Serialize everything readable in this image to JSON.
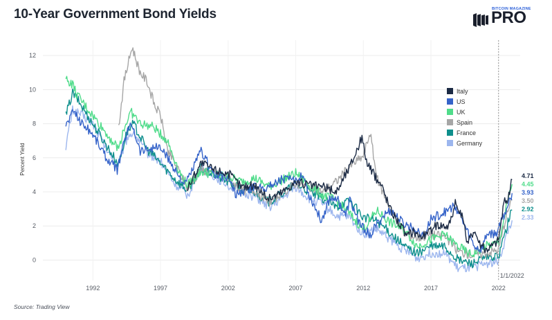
{
  "header": {
    "title": "10-Year Government Bond Yields",
    "logo_top": "BITCOIN MAGAZINE",
    "logo_main": "PRO"
  },
  "footer": {
    "source": "Source: Trading View"
  },
  "chart_data": {
    "type": "line",
    "title": "10-Year Government Bond Yields",
    "xlabel": "",
    "ylabel": "Percent Yield",
    "xlim": [
      1988.3,
      2023.6
    ],
    "ylim": [
      -1.2,
      12.9
    ],
    "yticks": [
      0,
      2,
      4,
      6,
      8,
      10,
      12
    ],
    "xticks": [
      1992,
      1997,
      2002,
      2007,
      2012,
      2017,
      2022
    ],
    "grid": true,
    "legend_position": "right",
    "reference_line": {
      "x": 2022.0,
      "label": "1/1/2022",
      "style": "dotted"
    },
    "series": [
      {
        "name": "Italy",
        "color": "#1b2a44",
        "end_label": "4.71",
        "points": [
          [
            1999,
            4.2
          ],
          [
            1999.5,
            5.0
          ],
          [
            2000,
            5.7
          ],
          [
            2001,
            5.3
          ],
          [
            2002,
            5.1
          ],
          [
            2003,
            4.3
          ],
          [
            2004,
            4.4
          ],
          [
            2005,
            3.6
          ],
          [
            2006,
            4.0
          ],
          [
            2007,
            4.6
          ],
          [
            2008,
            4.4
          ],
          [
            2009,
            4.3
          ],
          [
            2010,
            4.0
          ],
          [
            2011,
            5.5
          ],
          [
            2011.9,
            7.2
          ],
          [
            2012.3,
            5.6
          ],
          [
            2012.8,
            5.0
          ],
          [
            2013.4,
            4.3
          ],
          [
            2014,
            3.0
          ],
          [
            2014.8,
            2.0
          ],
          [
            2015.2,
            1.4
          ],
          [
            2015.7,
            1.7
          ],
          [
            2016.3,
            1.4
          ],
          [
            2016.8,
            1.6
          ],
          [
            2017.5,
            2.1
          ],
          [
            2018.3,
            2.0
          ],
          [
            2018.8,
            3.3
          ],
          [
            2019.3,
            2.5
          ],
          [
            2019.7,
            1.0
          ],
          [
            2020.2,
            1.8
          ],
          [
            2020.6,
            1.0
          ],
          [
            2021,
            0.6
          ],
          [
            2021.6,
            0.9
          ],
          [
            2022,
            1.2
          ],
          [
            2022.4,
            3.4
          ],
          [
            2022.7,
            3.6
          ],
          [
            2023.0,
            4.71
          ]
        ]
      },
      {
        "name": "US",
        "color": "#3563c9",
        "end_label": "3.93",
        "points": [
          [
            1990,
            7.9
          ],
          [
            1990.6,
            8.8
          ],
          [
            1991,
            8.2
          ],
          [
            1992,
            7.4
          ],
          [
            1993,
            6.0
          ],
          [
            1993.8,
            5.3
          ],
          [
            1994.5,
            7.5
          ],
          [
            1994.9,
            8.0
          ],
          [
            1995.5,
            6.4
          ],
          [
            1996.5,
            6.6
          ],
          [
            1997,
            6.6
          ],
          [
            1998,
            5.4
          ],
          [
            1998.8,
            4.4
          ],
          [
            1999,
            4.7
          ],
          [
            2000,
            6.4
          ],
          [
            2001,
            5.0
          ],
          [
            2002,
            4.8
          ],
          [
            2002.6,
            3.8
          ],
          [
            2003,
            4.0
          ],
          [
            2004,
            4.3
          ],
          [
            2005,
            4.3
          ],
          [
            2006,
            4.8
          ],
          [
            2007,
            4.6
          ],
          [
            2007.5,
            5.1
          ],
          [
            2008,
            3.8
          ],
          [
            2008.9,
            2.3
          ],
          [
            2009.5,
            3.6
          ],
          [
            2010,
            3.7
          ],
          [
            2010.7,
            2.6
          ],
          [
            2011,
            3.5
          ],
          [
            2011.8,
            2.0
          ],
          [
            2012.5,
            1.5
          ],
          [
            2013.5,
            2.6
          ],
          [
            2014,
            2.9
          ],
          [
            2015,
            2.1
          ],
          [
            2016,
            1.8
          ],
          [
            2016.5,
            1.4
          ],
          [
            2017,
            2.4
          ],
          [
            2018,
            2.8
          ],
          [
            2018.8,
            3.2
          ],
          [
            2019.5,
            2.0
          ],
          [
            2020.2,
            0.8
          ],
          [
            2020.7,
            0.6
          ],
          [
            2021.2,
            1.6
          ],
          [
            2021.8,
            1.5
          ],
          [
            2022.2,
            2.3
          ],
          [
            2022.6,
            3.0
          ],
          [
            2023.0,
            3.93
          ]
        ]
      },
      {
        "name": "UK",
        "color": "#4fdc8a",
        "end_label": "4.45",
        "points": [
          [
            1990,
            10.6
          ],
          [
            1990.5,
            10.3
          ],
          [
            1990.8,
            9.7
          ],
          [
            1993.9,
            6.5
          ],
          [
            1994.2,
            7.5
          ],
          [
            1994.8,
            8.7
          ],
          [
            1995.5,
            8.0
          ],
          [
            1996.5,
            7.8
          ],
          [
            1997.5,
            7.0
          ],
          [
            1998.5,
            5.0
          ],
          [
            1999,
            4.4
          ],
          [
            2000,
            5.2
          ],
          [
            2001,
            5.0
          ],
          [
            2002,
            4.9
          ],
          [
            2003,
            4.6
          ],
          [
            2004,
            4.8
          ],
          [
            2005,
            4.3
          ],
          [
            2006,
            4.7
          ],
          [
            2007,
            5.1
          ],
          [
            2008,
            4.4
          ],
          [
            2009,
            3.8
          ],
          [
            2010,
            3.5
          ],
          [
            2011,
            2.7
          ],
          [
            2012,
            1.8
          ],
          [
            2013,
            2.9
          ],
          [
            2014,
            2.2
          ],
          [
            2015,
            1.8
          ],
          [
            2016,
            0.8
          ],
          [
            2017,
            1.2
          ],
          [
            2018,
            1.5
          ],
          [
            2019,
            0.8
          ],
          [
            2020,
            0.3
          ],
          [
            2021,
            0.8
          ],
          [
            2022,
            1.0
          ],
          [
            2022.7,
            3.5
          ],
          [
            2023.0,
            4.45
          ]
        ]
      },
      {
        "name": "Spain",
        "color": "#a6a6a6",
        "end_label": "3.50",
        "points": [
          [
            1993.9,
            7.8
          ],
          [
            1994.3,
            10.5
          ],
          [
            1994.9,
            12.5
          ],
          [
            1995.5,
            11.0
          ],
          [
            1996,
            10.5
          ],
          [
            1996.6,
            9.0
          ],
          [
            1997,
            8.5
          ],
          [
            1997.5,
            6.5
          ],
          [
            1998.5,
            5.0
          ],
          [
            1999,
            4.2
          ],
          [
            2000,
            5.3
          ],
          [
            2001,
            5.1
          ],
          [
            2002,
            4.8
          ],
          [
            2003,
            4.1
          ],
          [
            2004,
            4.1
          ],
          [
            2005,
            3.4
          ],
          [
            2006,
            3.9
          ],
          [
            2007,
            4.5
          ],
          [
            2008,
            4.3
          ],
          [
            2009,
            4.0
          ],
          [
            2010,
            4.6
          ],
          [
            2011,
            5.5
          ],
          [
            2012,
            6.1
          ],
          [
            2012.5,
            7.5
          ],
          [
            2013,
            4.8
          ],
          [
            2014,
            3.0
          ],
          [
            2015,
            1.6
          ],
          [
            2016,
            1.3
          ],
          [
            2017,
            1.5
          ],
          [
            2018,
            1.4
          ],
          [
            2019,
            0.5
          ],
          [
            2020,
            0.3
          ],
          [
            2021,
            0.4
          ],
          [
            2022,
            0.6
          ],
          [
            2022.6,
            2.7
          ],
          [
            2023.0,
            3.5
          ]
        ]
      },
      {
        "name": "France",
        "color": "#0e8f8c",
        "end_label": "2.92",
        "points": [
          [
            1990,
            8.5
          ],
          [
            1990.5,
            9.8
          ],
          [
            1990.8,
            9.5
          ],
          [
            1993.9,
            5.6
          ],
          [
            1994.5,
            7.5
          ],
          [
            1995,
            8.0
          ],
          [
            1996,
            6.5
          ],
          [
            1997,
            5.7
          ],
          [
            1998,
            4.8
          ],
          [
            1999,
            4.1
          ],
          [
            2000,
            5.4
          ],
          [
            2001,
            5.0
          ],
          [
            2002,
            4.6
          ],
          [
            2003,
            4.1
          ],
          [
            2004,
            4.0
          ],
          [
            2005,
            3.4
          ],
          [
            2006,
            3.9
          ],
          [
            2007,
            4.5
          ],
          [
            2008,
            4.0
          ],
          [
            2009,
            3.6
          ],
          [
            2010,
            3.1
          ],
          [
            2011,
            3.5
          ],
          [
            2012,
            2.5
          ],
          [
            2013,
            2.3
          ],
          [
            2014,
            1.6
          ],
          [
            2015,
            0.8
          ],
          [
            2016,
            0.4
          ],
          [
            2017,
            0.8
          ],
          [
            2018,
            0.8
          ],
          [
            2019,
            0.0
          ],
          [
            2020,
            -0.2
          ],
          [
            2021,
            0.1
          ],
          [
            2022,
            0.2
          ],
          [
            2022.7,
            2.2
          ],
          [
            2023.0,
            2.92
          ]
        ]
      },
      {
        "name": "Germany",
        "color": "#9cb6ee",
        "end_label": "2.33",
        "points": [
          [
            1990,
            6.7
          ],
          [
            1990.5,
            8.8
          ],
          [
            1991,
            8.6
          ],
          [
            1992,
            8.0
          ],
          [
            1993,
            6.5
          ],
          [
            1993.8,
            5.5
          ],
          [
            1994.6,
            7.3
          ],
          [
            1995,
            7.5
          ],
          [
            1996,
            6.3
          ],
          [
            1997,
            5.8
          ],
          [
            1998,
            4.5
          ],
          [
            1999,
            3.8
          ],
          [
            2000,
            5.4
          ],
          [
            2001,
            4.9
          ],
          [
            2002,
            4.4
          ],
          [
            2003,
            4.0
          ],
          [
            2004,
            3.7
          ],
          [
            2005,
            3.1
          ],
          [
            2006,
            3.6
          ],
          [
            2007,
            4.3
          ],
          [
            2008,
            3.6
          ],
          [
            2009,
            3.3
          ],
          [
            2010,
            2.6
          ],
          [
            2011,
            2.5
          ],
          [
            2012,
            1.5
          ],
          [
            2013,
            1.8
          ],
          [
            2014,
            1.2
          ],
          [
            2015,
            0.6
          ],
          [
            2016,
            0.1
          ],
          [
            2017,
            0.4
          ],
          [
            2018,
            0.4
          ],
          [
            2019,
            -0.5
          ],
          [
            2020,
            -0.5
          ],
          [
            2021,
            -0.2
          ],
          [
            2022,
            -0.1
          ],
          [
            2022.7,
            1.7
          ],
          [
            2023.0,
            2.33
          ]
        ]
      }
    ]
  }
}
